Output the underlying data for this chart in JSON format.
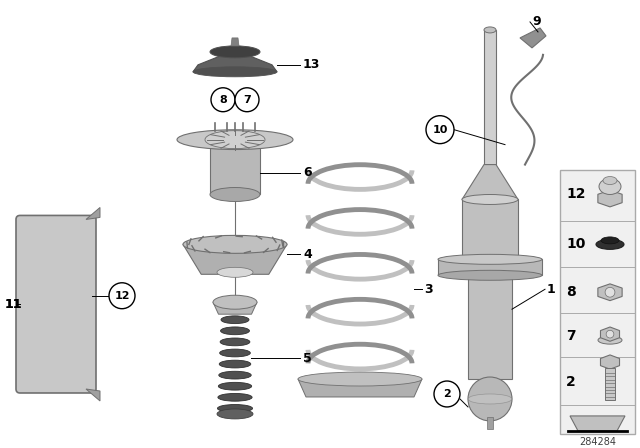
{
  "background_color": "#ffffff",
  "figure_width": 6.4,
  "figure_height": 4.48,
  "dpi": 100,
  "part_number": "284284",
  "colors": {
    "light_gray": "#c8c8c8",
    "mid_gray": "#a8a8a8",
    "dark_gray": "#707070",
    "darker_gray": "#505050",
    "black": "#000000",
    "white": "#ffffff",
    "sidebar_bg": "#f0f0f0",
    "sidebar_border": "#aaaaaa"
  }
}
